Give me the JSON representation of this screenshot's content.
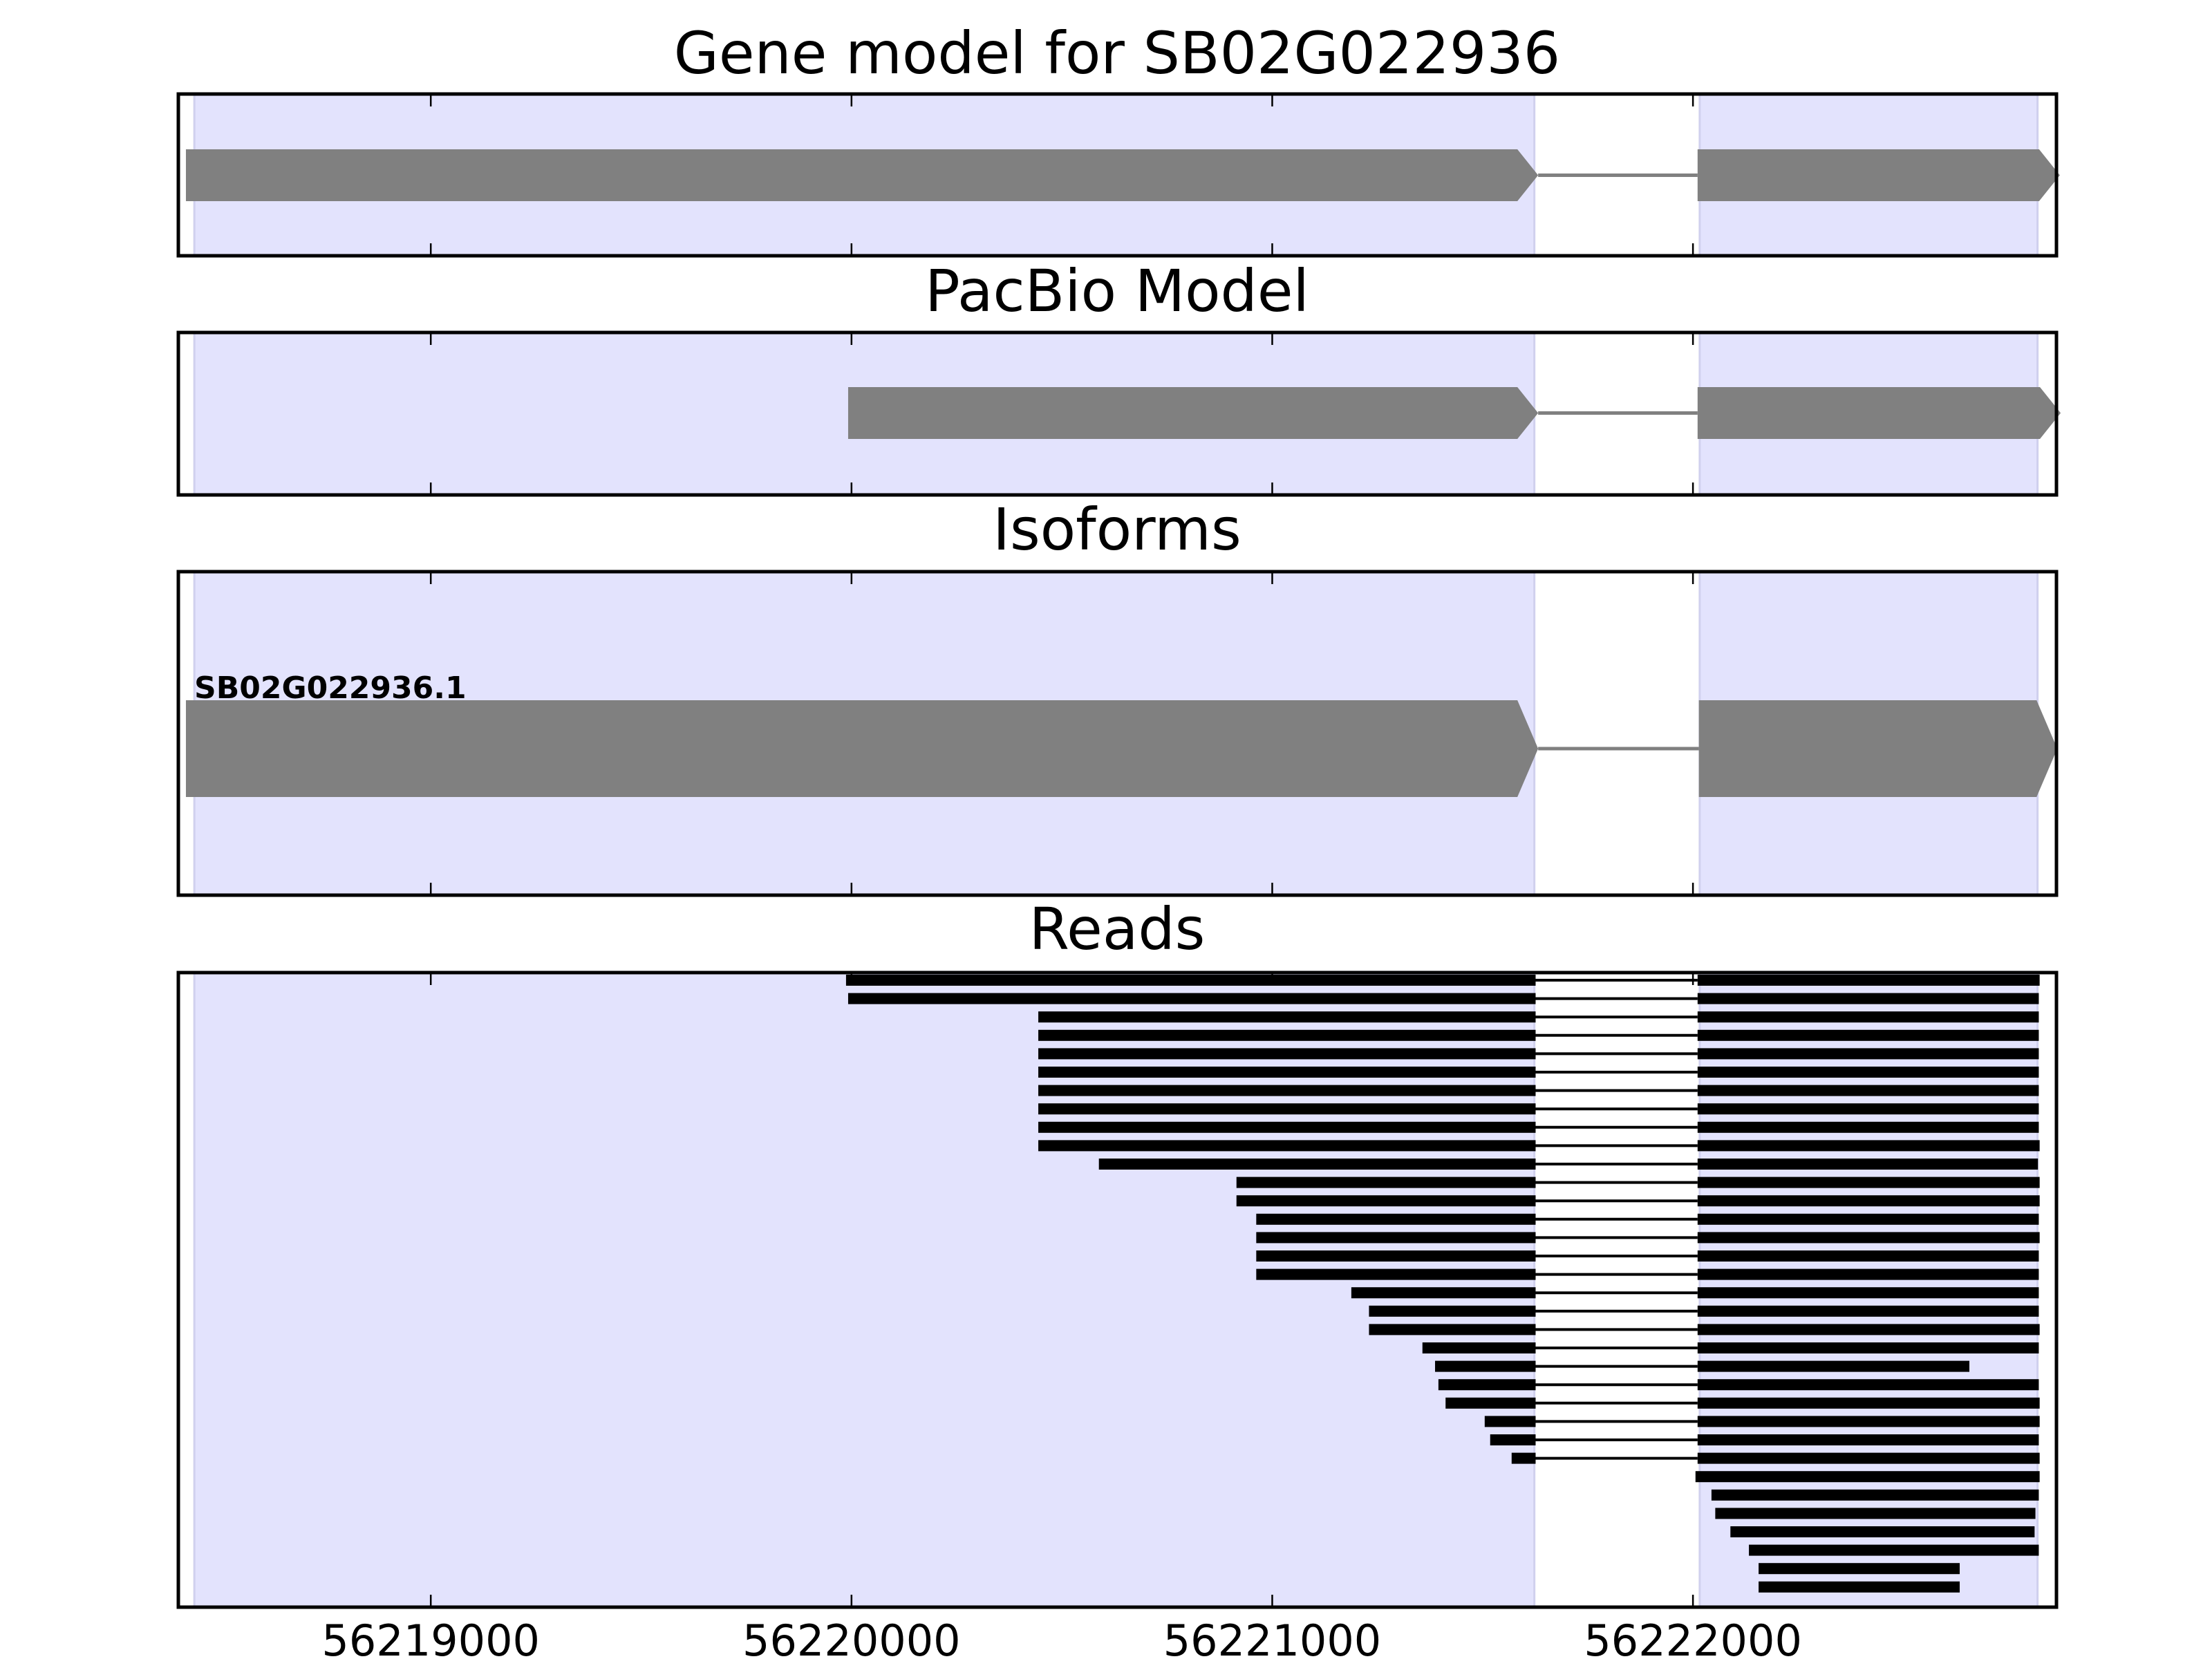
{
  "chart_data": {
    "type": "gene-track",
    "xlim": [
      56218400,
      56222864
    ],
    "x_ticks": [
      56219000,
      56220000,
      56221000,
      56222000
    ],
    "x_tick_labels": [
      "56219000",
      "56220000",
      "56221000",
      "56222000"
    ],
    "shaded_exon_regions": [
      [
        56218438,
        56221623
      ],
      [
        56222016,
        56222819
      ]
    ],
    "colors": {
      "shade": "#e3e3fd",
      "model": "#808080",
      "read": "#000000",
      "axis": "#000000"
    },
    "panels": [
      {
        "title": "Gene model for SB02G022936",
        "models": [
          {
            "label": "",
            "exons": [
              [
                56218418,
                56221632
              ],
              [
                56222011,
                56222872
              ]
            ]
          }
        ]
      },
      {
        "title": "PacBio Model",
        "models": [
          {
            "label": "",
            "exons": [
              [
                56219992,
                56221632
              ],
              [
                56222011,
                56222874
              ]
            ]
          }
        ]
      },
      {
        "title": "Isoforms",
        "models": [
          {
            "label": "SB02G022936.1",
            "exons": [
              [
                56218418,
                56221632
              ],
              [
                56222014,
                56222866
              ]
            ]
          }
        ]
      },
      {
        "title": "Reads",
        "reads": [
          [
            [
              56219987,
              56221626
            ],
            [
              56222011,
              56222824
            ]
          ],
          [
            [
              56219992,
              56221626
            ],
            [
              56222011,
              56222822
            ]
          ],
          [
            [
              56220444,
              56221626
            ],
            [
              56222011,
              56222822
            ]
          ],
          [
            [
              56220444,
              56221626
            ],
            [
              56222011,
              56222822
            ]
          ],
          [
            [
              56220444,
              56221626
            ],
            [
              56222011,
              56222822
            ]
          ],
          [
            [
              56220444,
              56221626
            ],
            [
              56222011,
              56222822
            ]
          ],
          [
            [
              56220444,
              56221626
            ],
            [
              56222011,
              56222822
            ]
          ],
          [
            [
              56220444,
              56221626
            ],
            [
              56222011,
              56222822
            ]
          ],
          [
            [
              56220444,
              56221626
            ],
            [
              56222011,
              56222822
            ]
          ],
          [
            [
              56220444,
              56221626
            ],
            [
              56222011,
              56222824
            ]
          ],
          [
            [
              56220588,
              56221626
            ],
            [
              56222011,
              56222820
            ]
          ],
          [
            [
              56220915,
              56221626
            ],
            [
              56222011,
              56222824
            ]
          ],
          [
            [
              56220915,
              56221626
            ],
            [
              56222011,
              56222824
            ]
          ],
          [
            [
              56220962,
              56221626
            ],
            [
              56222011,
              56222822
            ]
          ],
          [
            [
              56220962,
              56221626
            ],
            [
              56222011,
              56222824
            ]
          ],
          [
            [
              56220962,
              56221626
            ],
            [
              56222011,
              56222822
            ]
          ],
          [
            [
              56220962,
              56221626
            ],
            [
              56222011,
              56222822
            ]
          ],
          [
            [
              56221188,
              56221626
            ],
            [
              56222011,
              56222822
            ]
          ],
          [
            [
              56221230,
              56221626
            ],
            [
              56222011,
              56222822
            ]
          ],
          [
            [
              56221230,
              56221626
            ],
            [
              56222011,
              56222824
            ]
          ],
          [
            [
              56221357,
              56221626
            ],
            [
              56222011,
              56222822
            ]
          ],
          [
            [
              56221387,
              56221626
            ],
            [
              56222011,
              56222657
            ]
          ],
          [
            [
              56221395,
              56221626
            ],
            [
              56222011,
              56222822
            ]
          ],
          [
            [
              56221412,
              56221626
            ],
            [
              56222011,
              56222824
            ]
          ],
          [
            [
              56221505,
              56221626
            ],
            [
              56222011,
              56222824
            ]
          ],
          [
            [
              56221518,
              56221626
            ],
            [
              56222011,
              56222822
            ]
          ],
          [
            [
              56221569,
              56221626
            ],
            [
              56222011,
              56222824
            ]
          ],
          [
            [
              56222006,
              56222824
            ]
          ],
          [
            [
              56222044,
              56222822
            ]
          ],
          [
            [
              56222053,
              56222814
            ]
          ],
          [
            [
              56222089,
              56222812
            ]
          ],
          [
            [
              56222133,
              56222822
            ]
          ],
          [
            [
              56222156,
              56222634
            ]
          ],
          [
            [
              56222156,
              56222634
            ]
          ]
        ]
      }
    ]
  }
}
